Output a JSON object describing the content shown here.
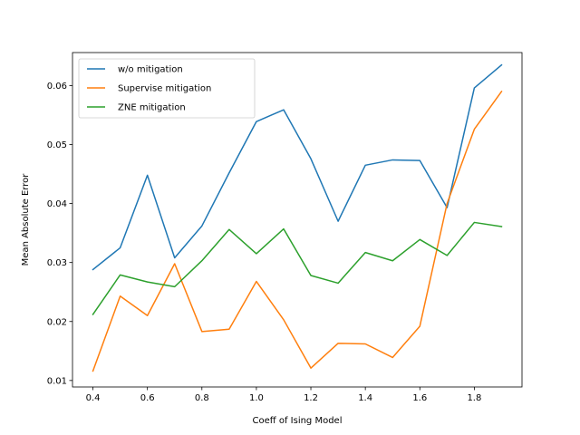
{
  "chart_data": {
    "type": "line",
    "title": "",
    "xlabel": "Coeff of Ising Model",
    "ylabel": "Mean Absolute Error",
    "xlim": [
      0.325,
      1.975
    ],
    "ylim": [
      0.0089,
      0.0656
    ],
    "xticks": [
      0.4,
      0.6,
      0.8,
      1.0,
      1.2,
      1.4,
      1.6,
      1.8
    ],
    "xtick_labels": [
      "0.4",
      "0.6",
      "0.8",
      "1.0",
      "1.2",
      "1.4",
      "1.6",
      "1.8"
    ],
    "yticks": [
      0.01,
      0.02,
      0.03,
      0.04,
      0.05,
      0.06
    ],
    "ytick_labels": [
      "0.01",
      "0.02",
      "0.03",
      "0.04",
      "0.05",
      "0.06"
    ],
    "grid": false,
    "legend_position": "top-left",
    "x": [
      0.4,
      0.5,
      0.6,
      0.7,
      0.8,
      0.9,
      1.0,
      1.1,
      1.2,
      1.3,
      1.4,
      1.5,
      1.6,
      1.7,
      1.8,
      1.9
    ],
    "series": [
      {
        "name": "w/o mitigation",
        "color": "#1f77b4",
        "values": [
          0.0288,
          0.0325,
          0.0448,
          0.0308,
          0.0362,
          0.0452,
          0.0539,
          0.0559,
          0.0476,
          0.037,
          0.0465,
          0.0474,
          0.0473,
          0.0393,
          0.0596,
          0.0635
        ]
      },
      {
        "name": "Supervise mitigation",
        "color": "#ff7f0e",
        "values": [
          0.0116,
          0.0243,
          0.021,
          0.0298,
          0.0183,
          0.0187,
          0.0268,
          0.0203,
          0.0121,
          0.0163,
          0.0162,
          0.0139,
          0.0192,
          0.04,
          0.0526,
          0.059
        ]
      },
      {
        "name": "ZNE mitigation",
        "color": "#2ca02c",
        "values": [
          0.0212,
          0.0279,
          0.0267,
          0.0259,
          0.0303,
          0.0356,
          0.0315,
          0.0357,
          0.0278,
          0.0265,
          0.0317,
          0.0303,
          0.0339,
          0.0312,
          0.0368,
          0.0361
        ]
      }
    ]
  }
}
